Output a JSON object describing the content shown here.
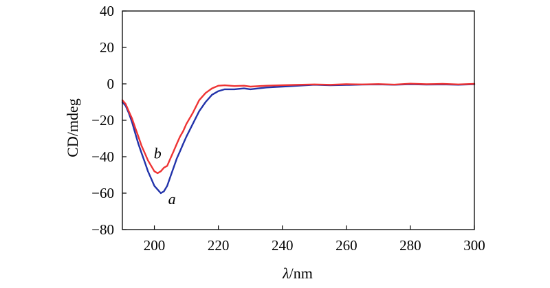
{
  "chart_data": {
    "type": "line",
    "title": "",
    "xlabel_italic": "λ",
    "xlabel_rest": "/nm",
    "ylabel": "CD/mdeg",
    "xlim": [
      190,
      300
    ],
    "ylim": [
      -80,
      40
    ],
    "xticks": [
      200,
      220,
      240,
      260,
      280,
      300
    ],
    "yticks": [
      40,
      20,
      0,
      -20,
      -40,
      -60,
      -80
    ],
    "grid": false,
    "series": [
      {
        "name": "a",
        "color": "#2233aa",
        "x": [
          190,
          191,
          192,
          193,
          194,
          195,
          196,
          197,
          198,
          199,
          200,
          201,
          202,
          203,
          204,
          205,
          206,
          207,
          208,
          209,
          210,
          212,
          214,
          216,
          218,
          220,
          222,
          225,
          228,
          230,
          235,
          240,
          245,
          250,
          255,
          260,
          265,
          270,
          275,
          280,
          285,
          290,
          295,
          300
        ],
        "y": [
          -10,
          -12,
          -16,
          -21,
          -27,
          -33,
          -38,
          -43,
          -48,
          -52,
          -56,
          -58,
          -60,
          -59,
          -56,
          -51,
          -46,
          -41,
          -37,
          -33,
          -29,
          -22,
          -15,
          -10,
          -6,
          -4,
          -3,
          -3,
          -2.5,
          -3,
          -2,
          -1.5,
          -1,
          -0.5,
          -0.8,
          -0.6,
          -0.4,
          -0.3,
          -0.5,
          -0.2,
          -0.4,
          -0.3,
          -0.5,
          -0.2
        ]
      },
      {
        "name": "b",
        "color": "#ee3333",
        "x": [
          190,
          191,
          192,
          193,
          194,
          195,
          196,
          197,
          198,
          199,
          200,
          201,
          202,
          203,
          204,
          205,
          206,
          207,
          208,
          209,
          210,
          212,
          214,
          216,
          218,
          220,
          222,
          225,
          228,
          230,
          235,
          240,
          245,
          250,
          255,
          260,
          265,
          270,
          275,
          280,
          285,
          290,
          295,
          300
        ],
        "y": [
          -9,
          -11,
          -15,
          -19,
          -24,
          -29,
          -34,
          -38,
          -42,
          -45,
          -48,
          -49,
          -48,
          -46,
          -45,
          -41,
          -37,
          -33,
          -29,
          -26,
          -22,
          -16,
          -9,
          -5,
          -2.5,
          -1,
          -0.8,
          -1.2,
          -1,
          -1.5,
          -1,
          -0.7,
          -0.5,
          -0.3,
          -0.5,
          -0.2,
          -0.3,
          -0.1,
          -0.4,
          0.1,
          -0.2,
          0,
          -0.3,
          0
        ]
      }
    ],
    "annotations": [
      {
        "text": "a",
        "x": 205.5,
        "y": -66
      },
      {
        "text": "b",
        "x": 201,
        "y": -41
      }
    ]
  }
}
